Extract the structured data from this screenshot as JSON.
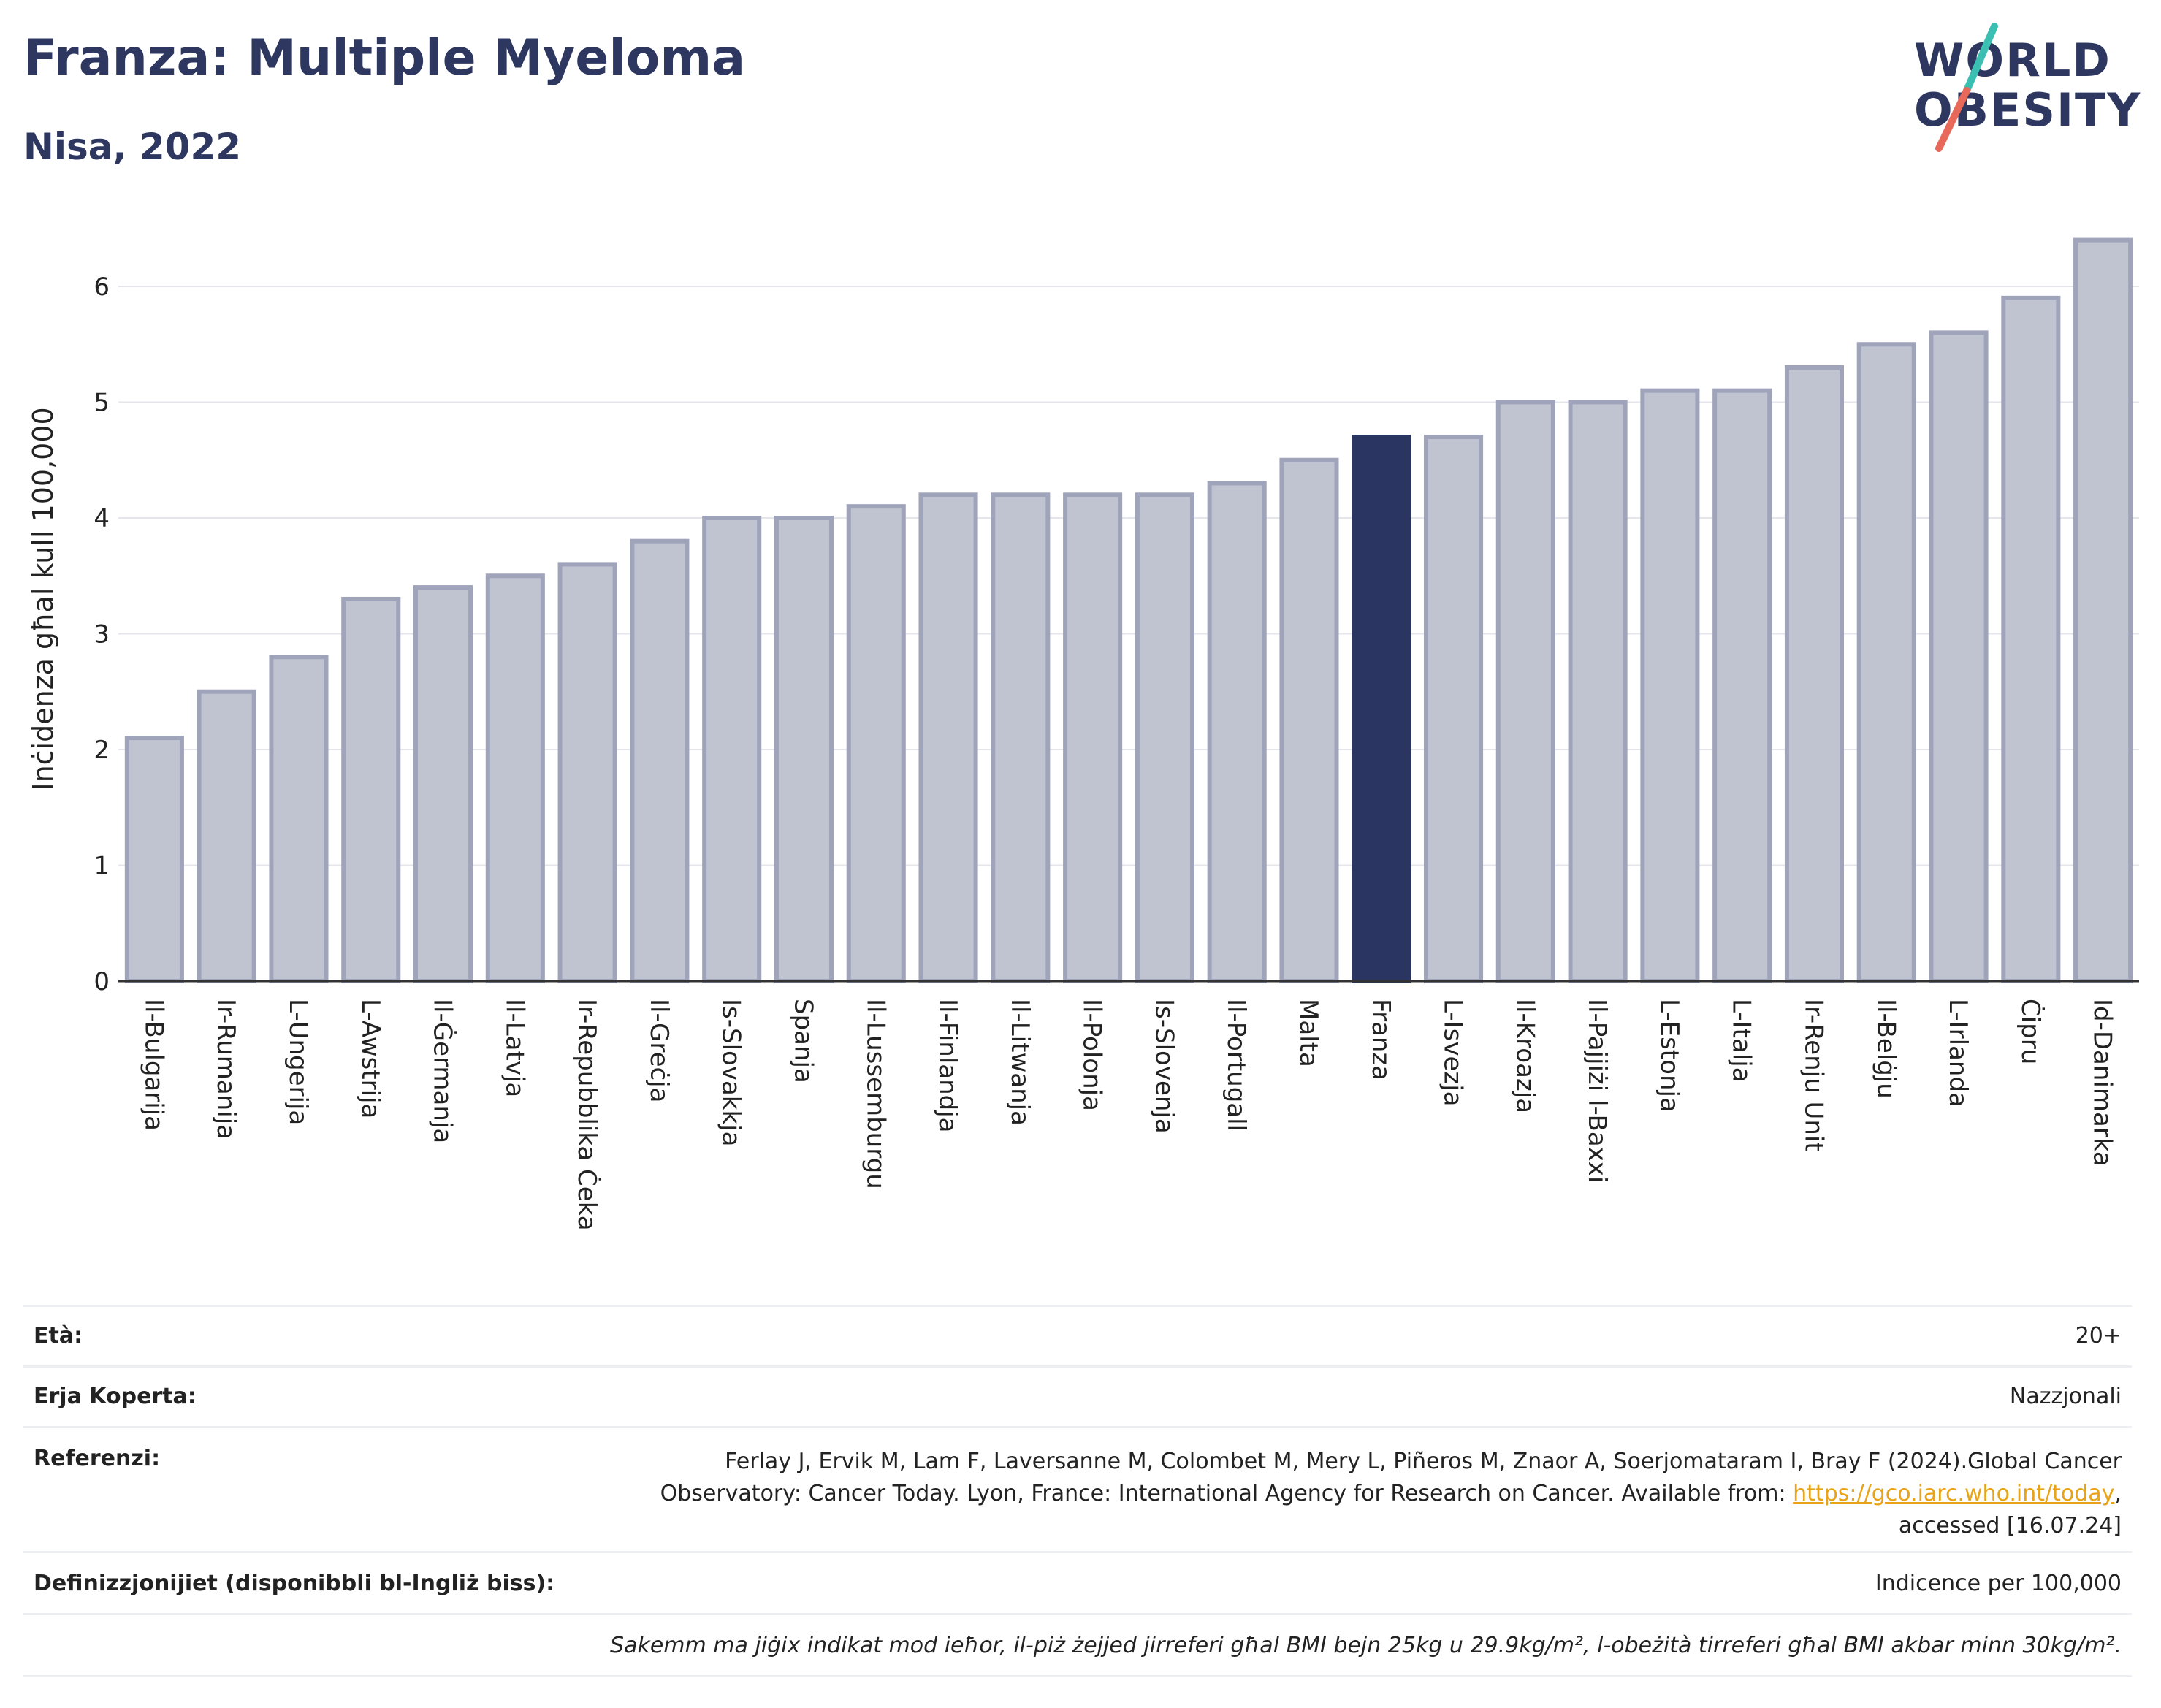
{
  "header": {
    "title": "Franza: Multiple Myeloma",
    "subtitle": "Nisa, 2022"
  },
  "logo": {
    "line1": "WORLD",
    "line2": "OBESITY",
    "colors": {
      "text": "#2d3760",
      "slash_teal": "#3cbfb3",
      "slash_coral": "#e8685a"
    }
  },
  "colors": {
    "bar": "#c0c3d0",
    "bar_stroke": "#9fa4bb",
    "highlight": "#2b3561",
    "grid": "#e4e6ec",
    "axis": "#333333"
  },
  "chart_data": {
    "type": "bar",
    "ylabel": "Inċidenza għal kull 100,000",
    "ylim": [
      0,
      6.6
    ],
    "yticks": [
      0,
      1,
      2,
      3,
      4,
      5,
      6
    ],
    "grid": true,
    "highlight": "Franza",
    "categories": [
      "Il-Bulgarija",
      "Ir-Rumanija",
      "L-Ungerija",
      "L-Awstrija",
      "Il-Ġermanja",
      "Il-Latvja",
      "Ir-Repubblika Ċeka",
      "Il-Greċja",
      "Is-Slovakkja",
      "Spanja",
      "Il-Lussemburgu",
      "Il-Finlandja",
      "Il-Litwanja",
      "Il-Polonja",
      "Is-Slovenja",
      "Il-Portugall",
      "Malta",
      "Franza",
      "L-Isvezja",
      "Il-Kroazja",
      "Il-Pajjiżi l-Baxxi",
      "L-Estonja",
      "L-Italja",
      "Ir-Renju Unit",
      "Il-Belġju",
      "L-Irlanda",
      "Ċipru",
      "Id-Danimarka"
    ],
    "values": [
      2.1,
      2.5,
      2.8,
      3.3,
      3.4,
      3.5,
      3.6,
      3.8,
      4.0,
      4.0,
      4.1,
      4.2,
      4.2,
      4.2,
      4.2,
      4.3,
      4.5,
      4.7,
      4.7,
      5.0,
      5.0,
      5.1,
      5.1,
      5.3,
      5.5,
      5.6,
      5.9,
      6.4
    ]
  },
  "info": {
    "age_label": "Età:",
    "age_value": "20+",
    "coverage_label": "Erja Koperta:",
    "coverage_value": "Nazzjonali",
    "references_label": "Referenzi:",
    "references_line1": "Ferlay J, Ervik M, Lam F, Laversanne M, Colombet M, Mery L, Piñeros M, Znaor A, Soerjomataram I, Bray F (2024).Global Cancer",
    "references_line2_pre": "Observatory: Cancer Today. Lyon, France: International Agency for Research on Cancer. Available from: ",
    "references_link": "https://gco.iarc.who.int/today",
    "references_line2_post": ",",
    "references_line3": "accessed [16.07.24]",
    "definitions_label": "Definizzjonijiet (disponibbli bl-Ingliż biss):",
    "definitions_value": "Indicence per 100,000",
    "note": "Sakemm ma jiġix indikat mod ieħor, il-piż żejjed jirreferi għal BMI bejn 25kg u 29.9kg/m², l-obeżità tirreferi għal BMI akbar minn 30kg/m²."
  }
}
